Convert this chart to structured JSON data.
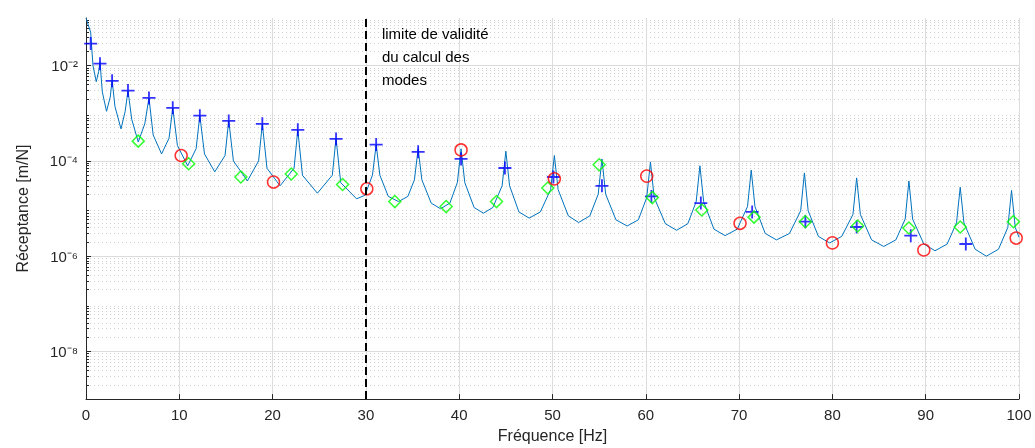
{
  "chart_data": {
    "type": "line",
    "xlabel": "Fréquence [Hz]",
    "ylabel": "Réceptance [m/N]",
    "xlim": [
      0,
      100
    ],
    "xticks": [
      0,
      10,
      20,
      30,
      40,
      50,
      60,
      70,
      80,
      90,
      100
    ],
    "ylim": [
      1e-09,
      0.1
    ],
    "yticks": [
      {
        "value": 1e-08,
        "label": "10⁻⁸"
      },
      {
        "value": 1e-06,
        "label": "10⁻⁶"
      },
      {
        "value": 0.0001,
        "label": "10⁻⁴"
      },
      {
        "value": 0.01,
        "label": "10⁻²"
      }
    ],
    "log": "y",
    "grid": true,
    "ref_lines": [
      {
        "axis": "x",
        "value": 30,
        "label": "limite de validité du calcul des modes",
        "color": "#000000",
        "line_style": "dashed"
      }
    ],
    "series": [
      {
        "marker": "none",
        "color": "#0072bd",
        "x": [
          0,
          0.5,
          0.75,
          1.1,
          1.35,
          1.5,
          1.75,
          2.2,
          2.6,
          2.8,
          3.1,
          3.75,
          4.2,
          4.5,
          4.9,
          5.6,
          6.3,
          6.75,
          7.2,
          8.1,
          8.9,
          9.3,
          9.8,
          10.9,
          11.8,
          12.2,
          12.7,
          13.8,
          14.9,
          15.3,
          15.8,
          17.3,
          18.5,
          18.9,
          19.4,
          20.8,
          22.3,
          22.7,
          23.2,
          24.8,
          26.4,
          26.8,
          27.3,
          29.0,
          29.9,
          30.7,
          31.1,
          31.5,
          32.4,
          33.5,
          34.5,
          35.2,
          35.6,
          36.0,
          37.0,
          38.0,
          39.0,
          39.8,
          40.2,
          40.6,
          41.6,
          42.6,
          43.6,
          44.6,
          45.0,
          45.4,
          46.4,
          47.5,
          48.7,
          49.8,
          50.2,
          50.6,
          51.7,
          52.8,
          54.0,
          54.9,
          55.3,
          55.7,
          56.8,
          58.0,
          59.2,
          60.1,
          60.5,
          60.9,
          62.1,
          63.3,
          64.5,
          65.4,
          65.8,
          66.2,
          67.3,
          68.5,
          69.8,
          70.9,
          71.3,
          71.7,
          72.8,
          74.0,
          75.4,
          76.6,
          77.0,
          77.4,
          78.5,
          79.7,
          81.0,
          82.2,
          82.6,
          83.0,
          84.2,
          85.5,
          86.8,
          87.8,
          88.2,
          88.6,
          89.8,
          91.0,
          92.3,
          93.3,
          93.7,
          94.1,
          95.3,
          96.5,
          97.8,
          98.8,
          99.2,
          99.6,
          100
        ],
        "values": [
          0.1,
          0.05,
          0.01,
          0.0046,
          0.0075,
          0.012,
          0.0028,
          0.0011,
          0.0022,
          0.005,
          0.0014,
          0.00047,
          0.0011,
          0.003,
          0.00075,
          0.00025,
          0.0006,
          0.0021,
          0.00035,
          0.00014,
          0.0003,
          0.0013,
          0.00021,
          7.9e-05,
          0.00018,
          0.0009,
          0.00014,
          5.9e-05,
          0.00013,
          0.0007,
          0.0001,
          3.8e-05,
          0.0001,
          0.0006,
          7e-05,
          3e-05,
          7e-05,
          0.00045,
          5e-05,
          2.1e-05,
          5e-05,
          0.0003,
          3.5e-05,
          1.6e-05,
          1.9e-05,
          5e-05,
          0.00022,
          5e-05,
          1.8e-05,
          1.4e-05,
          1.8e-05,
          4e-05,
          0.00018,
          4e-05,
          1.3e-05,
          9.9e-06,
          1.3e-05,
          3.5e-05,
          0.00018,
          3.5e-05,
          1.05e-05,
          8e-06,
          1.05e-05,
          3e-05,
          0.00016,
          3e-05,
          8.5e-06,
          6.3e-06,
          8.5e-06,
          2.5e-05,
          0.00013,
          2.5e-05,
          7e-06,
          5.1e-06,
          7e-06,
          2e-05,
          0.00011,
          2e-05,
          5.8e-06,
          4.3e-06,
          5.8e-06,
          1.7e-05,
          9.5e-05,
          1.7e-05,
          4.8e-06,
          3.5e-06,
          4.8e-06,
          1.4e-05,
          7.9e-05,
          1.4e-05,
          3.7e-06,
          2.7e-06,
          3.7e-06,
          1.1e-05,
          6.4e-05,
          1.1e-05,
          3e-06,
          2.2e-06,
          3e-06,
          9e-06,
          5.6e-05,
          9e-06,
          2.6e-06,
          1.9e-06,
          2.6e-06,
          7.5e-06,
          4.4e-05,
          7.5e-06,
          2.2e-06,
          1.6e-06,
          2.2e-06,
          6e-06,
          3.8e-05,
          6e-06,
          1.8e-06,
          1.3e-06,
          1.8e-06,
          5e-06,
          2.8e-05,
          5e-06,
          1.4e-06,
          1e-06,
          1.4e-06,
          4e-06,
          2.4e-05,
          4e-06,
          2.5e-06
        ]
      },
      {
        "type": "scatter",
        "marker": "cross",
        "color": "#0000ff",
        "x": [
          0.5,
          1.5,
          2.8,
          4.5,
          6.75,
          9.3,
          12.2,
          15.3,
          18.9,
          22.7,
          26.8,
          31.1,
          35.6,
          40.2,
          44.9,
          50.1,
          55.3,
          60.6,
          65.9,
          71.4,
          77.1,
          82.6,
          88.4,
          94.3
        ],
        "values": [
          0.029,
          0.011,
          0.0048,
          0.003,
          0.0021,
          0.0013,
          0.00089,
          0.00069,
          0.0006,
          0.00045,
          0.00029,
          0.00022,
          0.000155,
          0.00011,
          7.1e-05,
          4.6e-05,
          3e-05,
          1.8e-05,
          1.3e-05,
          8.5e-06,
          5.3e-06,
          4.1e-06,
          2.7e-06,
          1.8e-06
        ]
      },
      {
        "type": "scatter",
        "marker": "diamond",
        "color": "#00ff00",
        "x": [
          5.6,
          11.0,
          16.6,
          22.0,
          27.5,
          33.1,
          38.6,
          44.0,
          49.5,
          55.0,
          60.7,
          66.0,
          71.6,
          77.1,
          82.7,
          88.2,
          93.7,
          99.4
        ],
        "values": [
          0.00026,
          8.7e-05,
          4.6e-05,
          5.3e-05,
          3.2e-05,
          1.4e-05,
          1.1e-05,
          1.4e-05,
          2.7e-05,
          8.3e-05,
          1.7e-05,
          9.3e-06,
          6.6e-06,
          5.3e-06,
          4.3e-06,
          3.9e-06,
          4.1e-06,
          5.3e-06
        ]
      },
      {
        "type": "scatter",
        "marker": "circle",
        "color": "#ff0000",
        "x": [
          10.2,
          20.1,
          30.1,
          40.2,
          50.2,
          60.1,
          70.1,
          80.0,
          89.8,
          99.7
        ],
        "values": [
          0.00013,
          3.6e-05,
          2.6e-05,
          0.00017,
          4.2e-05,
          4.8e-05,
          4.9e-06,
          1.9e-06,
          1.35e-06,
          2.4e-06
        ]
      }
    ]
  }
}
